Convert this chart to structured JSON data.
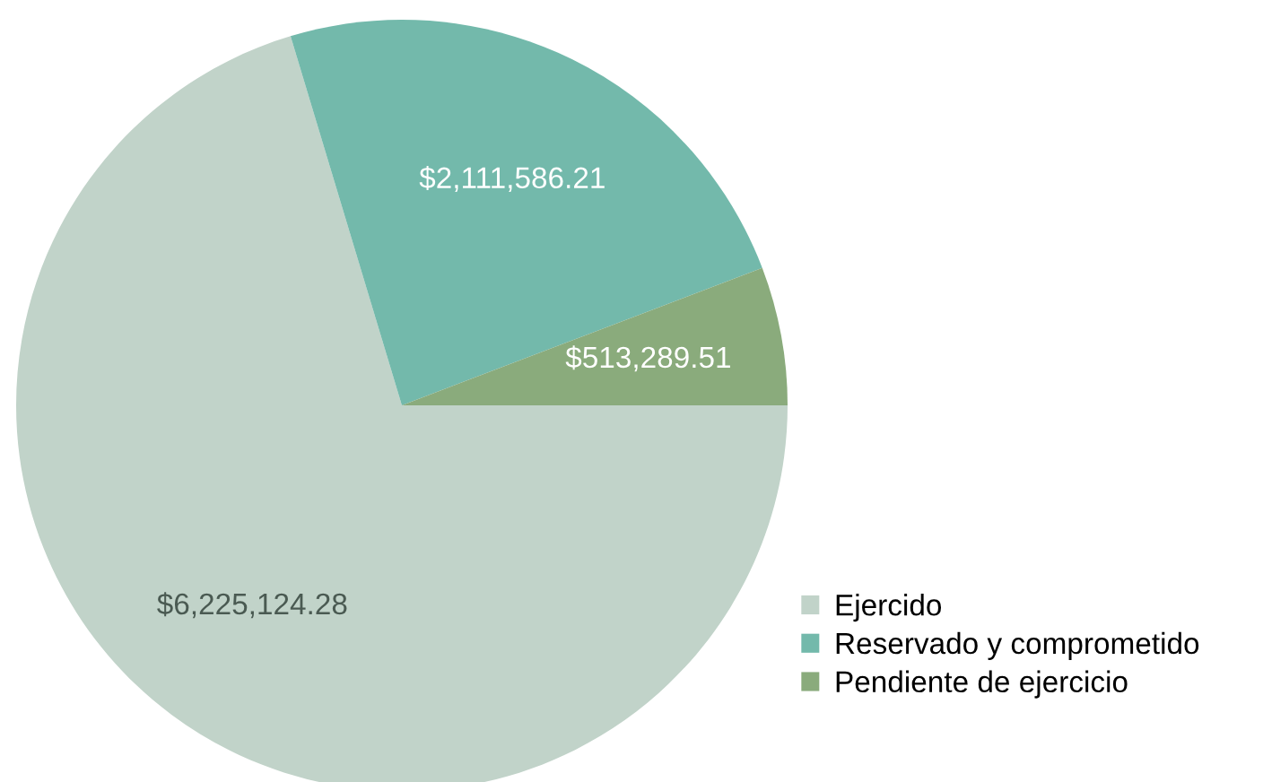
{
  "chart_data": {
    "type": "pie",
    "categories": [
      "Ejercido",
      "Reservado y comprometido",
      "Pendiente de ejercicio"
    ],
    "values": [
      6225124.28,
      2111586.21,
      513289.51
    ],
    "colors": [
      "#c1d3c9",
      "#73b9ab",
      "#8aab7c"
    ],
    "value_labels": [
      "$6,225,124.28",
      "$2,111,586.21",
      "$513,289.51"
    ],
    "legend": "bottom right"
  }
}
